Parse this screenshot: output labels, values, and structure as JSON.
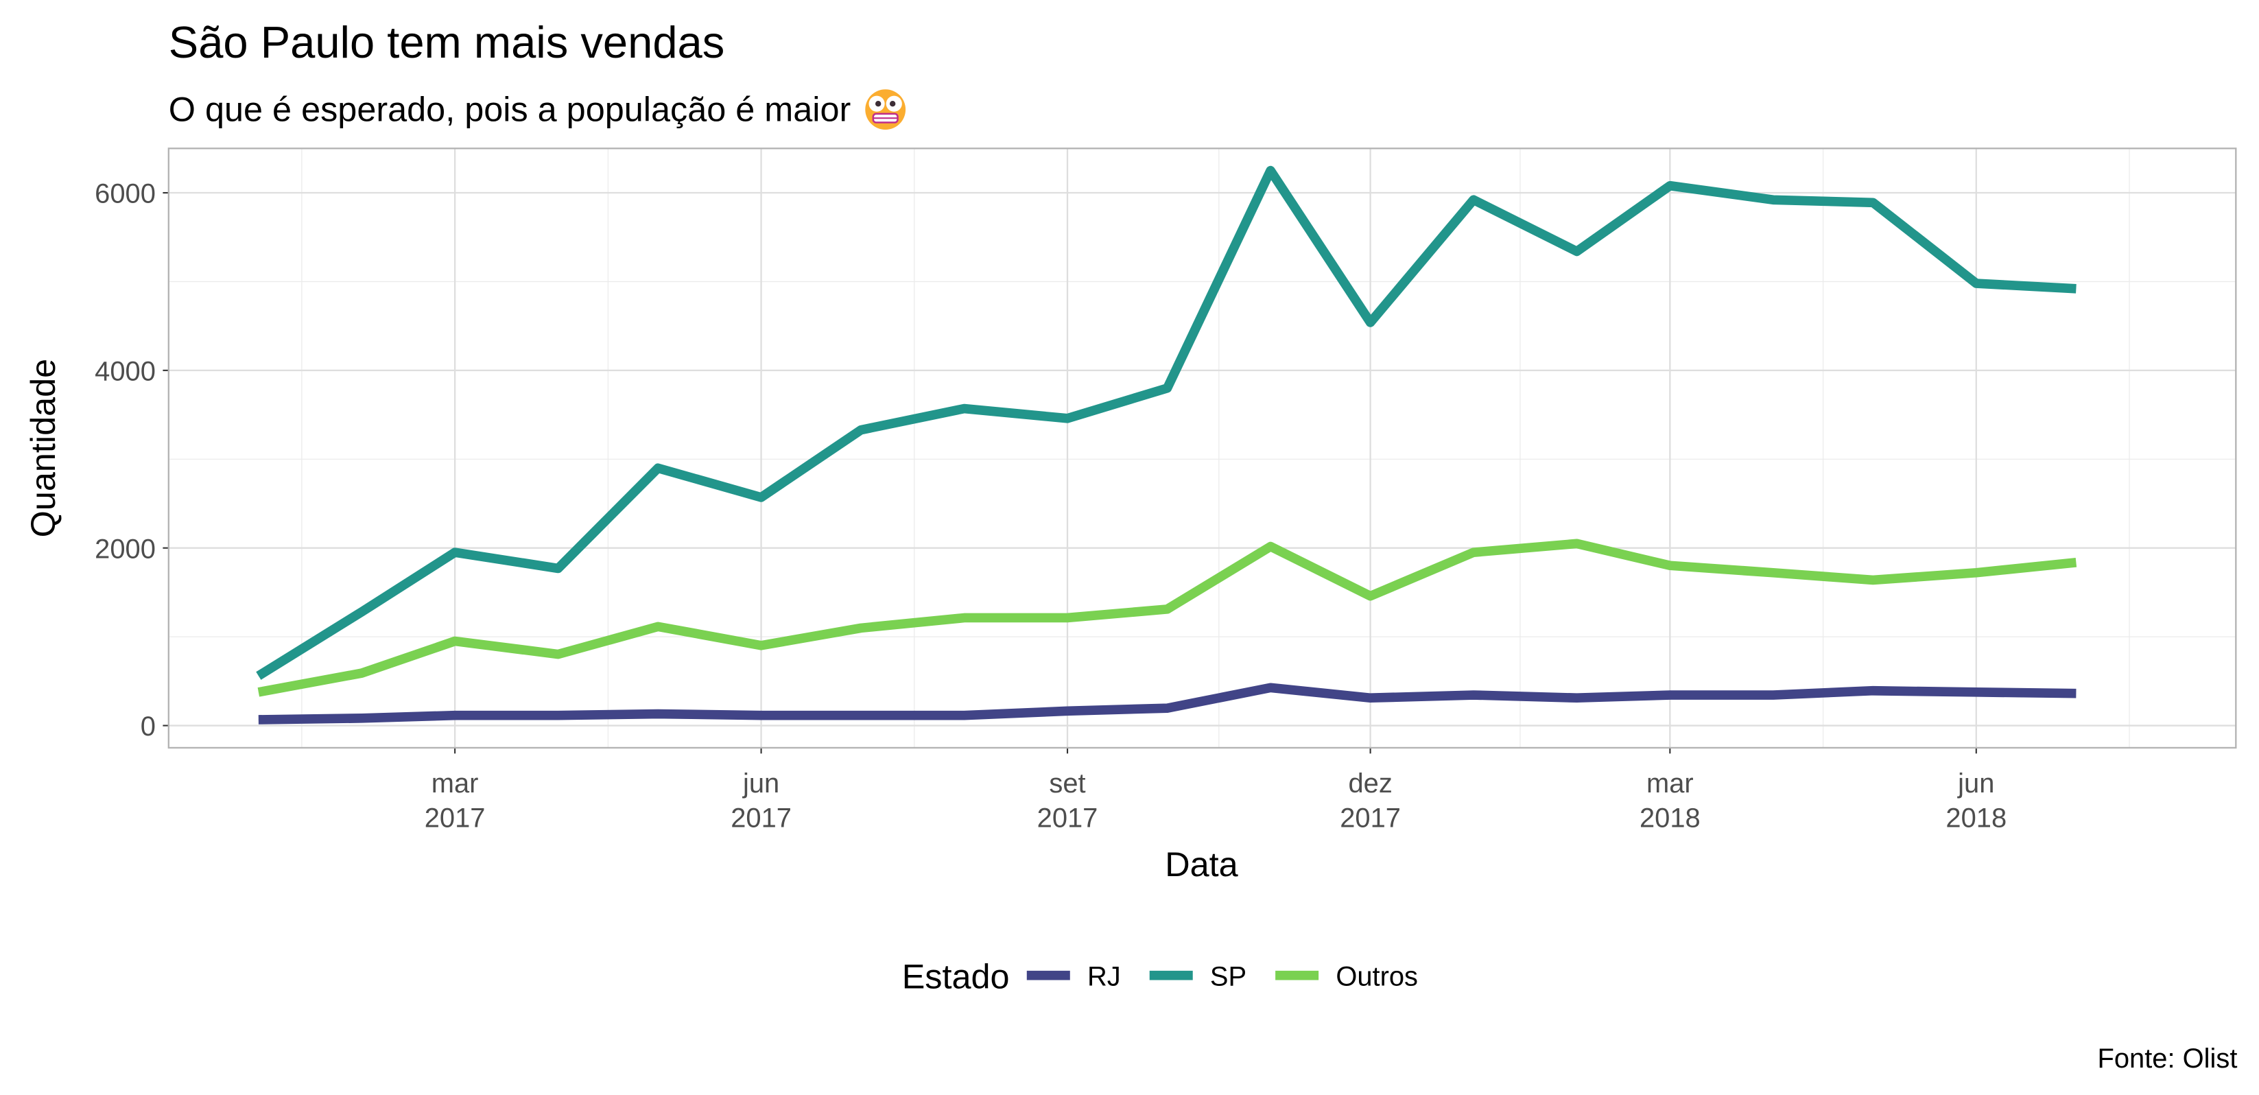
{
  "chart_data": {
    "type": "line",
    "title": "São Paulo tem mais vendas",
    "subtitle": "O que é esperado, pois a população é maior",
    "subtitle_emoji": "grimacing-face",
    "caption": "Fonte: Olist",
    "xlabel": "Data",
    "ylabel": "Quantidade",
    "ylim": [
      -250,
      6500
    ],
    "yticks": [
      0,
      2000,
      4000,
      6000
    ],
    "xlim": [
      "2016-12-05",
      "2018-08-18"
    ],
    "xticks": [
      {
        "date": "2017-03-01",
        "label1": "mar",
        "label2": "2017"
      },
      {
        "date": "2017-06-01",
        "label1": "jun",
        "label2": "2017"
      },
      {
        "date": "2017-09-01",
        "label1": "set",
        "label2": "2017"
      },
      {
        "date": "2017-12-01",
        "label1": "dez",
        "label2": "2017"
      },
      {
        "date": "2018-03-01",
        "label1": "mar",
        "label2": "2018"
      },
      {
        "date": "2018-06-01",
        "label1": "jun",
        "label2": "2018"
      }
    ],
    "grid": true,
    "legend": {
      "title": "Estado",
      "position": "bottom"
    },
    "x": [
      "2017-01-01",
      "2017-02-01",
      "2017-03-01",
      "2017-04-01",
      "2017-05-01",
      "2017-06-01",
      "2017-07-01",
      "2017-08-01",
      "2017-09-01",
      "2017-10-01",
      "2017-11-01",
      "2017-12-01",
      "2018-01-01",
      "2018-02-01",
      "2018-03-01",
      "2018-04-01",
      "2018-05-01",
      "2018-06-01",
      "2018-07-01"
    ],
    "series": [
      {
        "name": "RJ",
        "color": "#414487",
        "values": [
          66,
          82,
          115,
          115,
          131,
          115,
          115,
          115,
          164,
          197,
          426,
          311,
          344,
          311,
          344,
          344,
          393,
          377,
          361
        ]
      },
      {
        "name": "SP",
        "color": "#22958b",
        "values": [
          560,
          1280,
          1950,
          1770,
          2900,
          2570,
          3330,
          3570,
          3460,
          3800,
          6250,
          4540,
          5920,
          5340,
          6080,
          5920,
          5890,
          4980,
          4920
        ]
      },
      {
        "name": "Outros",
        "color": "#7ad151",
        "values": [
          377,
          590,
          951,
          803,
          1115,
          902,
          1098,
          1213,
          1213,
          1311,
          2016,
          1459,
          1951,
          2049,
          1803,
          1721,
          1639,
          1721,
          1836
        ]
      }
    ]
  }
}
